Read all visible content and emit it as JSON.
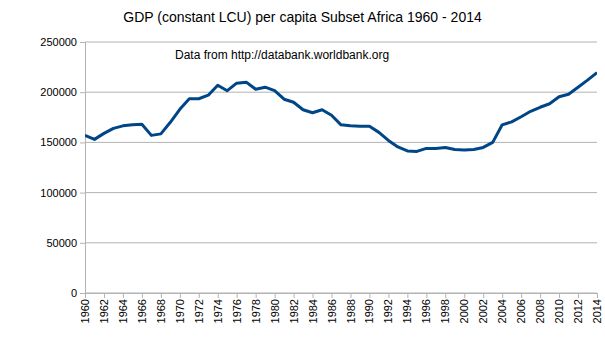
{
  "chart_data": {
    "type": "line",
    "title": "GDP (constant LCU) per capita Subset Africa 1960 - 2014",
    "annotations": [
      "Data from http://databank.worldbank.org"
    ],
    "x": [
      1960,
      1961,
      1962,
      1963,
      1964,
      1965,
      1966,
      1967,
      1968,
      1969,
      1970,
      1971,
      1972,
      1973,
      1974,
      1975,
      1976,
      1977,
      1978,
      1979,
      1980,
      1981,
      1982,
      1983,
      1984,
      1985,
      1986,
      1987,
      1988,
      1989,
      1990,
      1991,
      1992,
      1993,
      1994,
      1995,
      1996,
      1997,
      1998,
      1999,
      2000,
      2001,
      2002,
      2003,
      2004,
      2005,
      2006,
      2007,
      2008,
      2009,
      2010,
      2011,
      2012,
      2013,
      2014
    ],
    "values": [
      157000,
      153000,
      159000,
      164000,
      166500,
      167500,
      168000,
      157000,
      158500,
      170000,
      183000,
      193500,
      193500,
      197000,
      207000,
      201500,
      209000,
      210000,
      203000,
      205000,
      201500,
      193000,
      190000,
      182500,
      179500,
      182500,
      177000,
      167500,
      166500,
      166000,
      166000,
      160000,
      152000,
      145500,
      141500,
      141000,
      144000,
      144000,
      145000,
      143000,
      142500,
      143000,
      145000,
      150000,
      167500,
      170500,
      175500,
      181000,
      185000,
      188500,
      195500,
      198000,
      205000,
      212000,
      219500
    ],
    "color": "#004586",
    "xlim": [
      1960,
      2014
    ],
    "xticks": [
      1960,
      1962,
      1964,
      1966,
      1968,
      1970,
      1972,
      1974,
      1976,
      1978,
      1980,
      1982,
      1984,
      1986,
      1988,
      1990,
      1992,
      1994,
      1996,
      1998,
      2000,
      2002,
      2004,
      2006,
      2008,
      2010,
      2012,
      2014
    ],
    "ylim": [
      0,
      250000
    ],
    "yticks": [
      0,
      50000,
      100000,
      150000,
      200000,
      250000
    ],
    "grid": true
  }
}
